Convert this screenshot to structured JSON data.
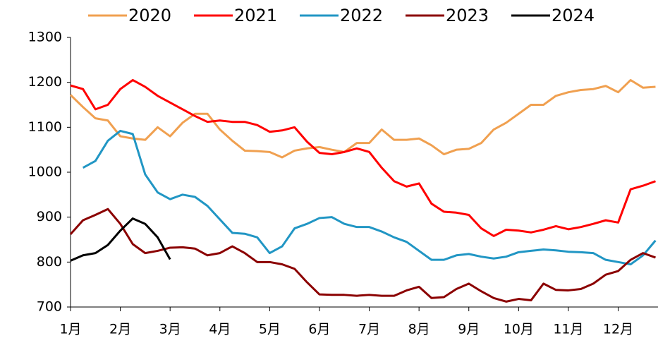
{
  "chart_data": {
    "type": "line",
    "x": [
      1,
      1.25,
      1.5,
      1.75,
      2,
      2.25,
      2.5,
      2.75,
      3,
      3.25,
      3.5,
      3.75,
      4,
      4.25,
      4.5,
      4.75,
      5,
      5.25,
      5.5,
      5.75,
      6,
      6.25,
      6.5,
      6.75,
      7,
      7.25,
      7.5,
      7.75,
      8,
      8.25,
      8.5,
      8.75,
      9,
      9.25,
      9.5,
      9.75,
      10,
      10.25,
      10.5,
      10.75,
      11,
      11.25,
      11.5,
      11.75,
      12,
      12.25,
      12.5,
      12.75
    ],
    "series": [
      {
        "name": "2020",
        "color": "#F0A050",
        "values": [
          1172,
          1145,
          1120,
          1115,
          1080,
          1075,
          1072,
          1100,
          1080,
          1110,
          1130,
          1130,
          1095,
          1070,
          1048,
          1047,
          1045,
          1033,
          1048,
          1053,
          1056,
          1050,
          1045,
          1065,
          1065,
          1095,
          1072,
          1072,
          1075,
          1060,
          1040,
          1050,
          1052,
          1065,
          1095,
          1110,
          1130,
          1150,
          1150,
          1170,
          1178,
          1183,
          1185,
          1192,
          1178,
          1205,
          1188,
          1190
        ]
      },
      {
        "name": "2021",
        "color": "#FF0000",
        "values": [
          1193,
          1185,
          1140,
          1150,
          1185,
          1205,
          1190,
          1170,
          1155,
          1140,
          1125,
          1112,
          1115,
          1112,
          1112,
          1105,
          1090,
          1093,
          1100,
          1068,
          1043,
          1040,
          1045,
          1053,
          1045,
          1010,
          980,
          968,
          975,
          930,
          912,
          910,
          905,
          875,
          858,
          872,
          870,
          866,
          872,
          880,
          873,
          878,
          885,
          893,
          888,
          962,
          970,
          980
        ]
      },
      {
        "name": "2022",
        "color": "#2196C4",
        "values": [
          null,
          1010,
          1025,
          1070,
          1092,
          1085,
          995,
          955,
          940,
          950,
          945,
          925,
          895,
          865,
          863,
          855,
          820,
          835,
          875,
          885,
          898,
          900,
          885,
          878,
          878,
          868,
          855,
          845,
          825,
          805,
          805,
          815,
          818,
          812,
          808,
          812,
          822,
          825,
          828,
          826,
          823,
          822,
          820,
          805,
          800,
          795,
          815,
          848
        ]
      },
      {
        "name": "2023",
        "color": "#8B0000",
        "values": [
          862,
          893,
          905,
          918,
          885,
          840,
          820,
          825,
          832,
          833,
          830,
          815,
          820,
          835,
          820,
          800,
          800,
          795,
          785,
          755,
          728,
          727,
          727,
          725,
          727,
          725,
          725,
          737,
          745,
          720,
          722,
          740,
          752,
          735,
          720,
          712,
          718,
          715,
          752,
          738,
          737,
          740,
          752,
          772,
          780,
          805,
          820,
          810
        ]
      },
      {
        "name": "2024",
        "color": "#000000",
        "values": [
          803,
          815,
          820,
          838,
          870,
          897,
          885,
          855,
          806,
          null,
          null,
          null,
          null,
          null,
          null,
          null,
          null,
          null,
          null,
          null,
          null,
          null,
          null,
          null,
          null,
          null,
          null,
          null,
          null,
          null,
          null,
          null,
          null,
          null,
          null,
          null,
          null,
          null,
          null,
          null,
          null,
          null,
          null,
          null,
          null,
          null,
          null,
          null
        ]
      }
    ],
    "xlim": [
      1,
      12.8
    ],
    "xticks": [
      {
        "value": 1,
        "label": "1月"
      },
      {
        "value": 2,
        "label": "2月"
      },
      {
        "value": 3,
        "label": "3月"
      },
      {
        "value": 4,
        "label": "4月"
      },
      {
        "value": 5,
        "label": "5月"
      },
      {
        "value": 6,
        "label": "6月"
      },
      {
        "value": 7,
        "label": "7月"
      },
      {
        "value": 8,
        "label": "8月"
      },
      {
        "value": 9,
        "label": "9月"
      },
      {
        "value": 10,
        "label": "10月"
      },
      {
        "value": 11,
        "label": "11月"
      },
      {
        "value": 12,
        "label": "12月"
      }
    ],
    "ylim": [
      700,
      1300
    ],
    "yticks": [
      700,
      800,
      900,
      1000,
      1100,
      1200,
      1300
    ],
    "legend": "top"
  }
}
